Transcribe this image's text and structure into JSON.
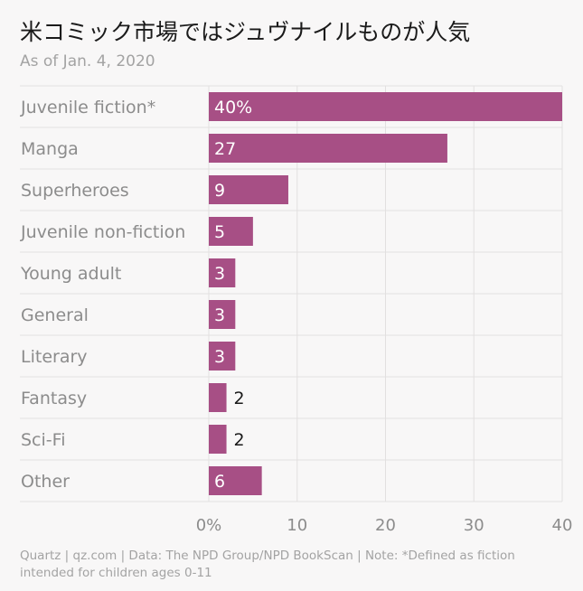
{
  "title": "米コミック市場ではジュヴナイルものが人気",
  "subtitle": "As of Jan. 4, 2020",
  "footer": "Quartz | qz.com | Data: The NPD Group/NPD BookScan | Note: *Defined as fiction intended for children ages 0-11",
  "colors": {
    "bar": "#a74f85",
    "grid": "#e2e0e0",
    "label": "#8c8c8c",
    "value_inside": "#ffffff",
    "value_outside": "#1a1a1a"
  },
  "chart_data": {
    "type": "bar",
    "orientation": "horizontal",
    "title": "米コミック市場ではジュヴナイルものが人気",
    "subtitle": "As of Jan. 4, 2020",
    "categories": [
      "Juvenile fiction*",
      "Manga",
      "Superheroes",
      "Juvenile non-fiction",
      "Young adult",
      "General",
      "Literary",
      "Fantasy",
      "Sci-Fi",
      "Other"
    ],
    "values": [
      40,
      27,
      9,
      5,
      3,
      3,
      3,
      2,
      2,
      6
    ],
    "value_labels": [
      "40%",
      "27",
      "9",
      "5",
      "3",
      "3",
      "3",
      "2",
      "2",
      "6"
    ],
    "unit": "%",
    "xlim": [
      0,
      40
    ],
    "xticks": [
      0,
      10,
      20,
      30,
      40
    ],
    "xtick_labels": [
      "0%",
      "10",
      "20",
      "30",
      "40"
    ],
    "grid": true,
    "legend": "none"
  }
}
